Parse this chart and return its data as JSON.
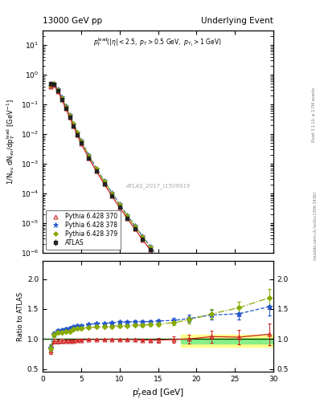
{
  "title_left": "13000 GeV pp",
  "title_right": "Underlying Event",
  "watermark": "ATLAS_2017_I1509919",
  "xlim": [
    0,
    30
  ],
  "ylim_main": [
    1e-06,
    30
  ],
  "ylim_ratio": [
    0.45,
    2.3
  ],
  "atlas_x": [
    1.0,
    1.5,
    2.0,
    2.5,
    3.0,
    3.5,
    4.0,
    4.5,
    5.0,
    6.0,
    7.0,
    8.0,
    9.0,
    10.0,
    11.0,
    12.0,
    13.0,
    14.0,
    15.0,
    17.0,
    19.0,
    22.0,
    25.5,
    29.5
  ],
  "atlas_y": [
    0.5,
    0.46,
    0.28,
    0.148,
    0.075,
    0.038,
    0.019,
    0.0095,
    0.0049,
    0.00155,
    0.00056,
    0.000208,
    8.25e-05,
    3.4e-05,
    1.44e-05,
    6.3e-06,
    2.8e-06,
    1.26e-06,
    5.6e-07,
    1.72e-07,
    5.6e-08,
    1.3e-08,
    3.1e-09,
    6.5e-10
  ],
  "atlas_yerr_lo": [
    0.02,
    0.02,
    0.014,
    0.008,
    0.004,
    0.002,
    0.001,
    0.0005,
    0.00025,
    8e-05,
    3e-05,
    1.1e-05,
    4.5e-06,
    1.9e-06,
    8e-07,
    3.5e-07,
    1.6e-07,
    7e-08,
    3.2e-08,
    1e-08,
    3.5e-09,
    9e-10,
    2.5e-10,
    6e-11
  ],
  "atlas_yerr_hi": [
    0.02,
    0.02,
    0.014,
    0.008,
    0.004,
    0.002,
    0.001,
    0.0005,
    0.00025,
    8e-05,
    3e-05,
    1.1e-05,
    4.5e-06,
    1.9e-06,
    8e-07,
    3.5e-07,
    1.6e-07,
    7e-08,
    3.2e-08,
    1e-08,
    3.5e-09,
    9e-10,
    2.5e-10,
    6e-11
  ],
  "p370_x": [
    1.0,
    1.5,
    2.0,
    2.5,
    3.0,
    3.5,
    4.0,
    4.5,
    5.0,
    6.0,
    7.0,
    8.0,
    9.0,
    10.0,
    11.0,
    12.0,
    13.0,
    14.0,
    15.0,
    17.0,
    19.0,
    22.0,
    25.5,
    29.5
  ],
  "p370_y": [
    0.4,
    0.44,
    0.27,
    0.144,
    0.073,
    0.037,
    0.0185,
    0.00935,
    0.0048,
    0.00153,
    0.000555,
    0.000206,
    8.2e-05,
    3.37e-05,
    1.43e-05,
    6.25e-06,
    2.75e-06,
    1.24e-06,
    5.5e-07,
    1.7e-07,
    5.6e-08,
    1.35e-08,
    3.2e-09,
    7e-10
  ],
  "p378_x": [
    1.0,
    1.5,
    2.0,
    2.5,
    3.0,
    3.5,
    4.0,
    4.5,
    5.0,
    6.0,
    7.0,
    8.0,
    9.0,
    10.0,
    11.0,
    12.0,
    13.0,
    14.0,
    15.0,
    17.0,
    19.0,
    22.0,
    25.5,
    29.5
  ],
  "p378_y": [
    0.43,
    0.5,
    0.32,
    0.17,
    0.088,
    0.045,
    0.0228,
    0.0116,
    0.006,
    0.00192,
    0.000704,
    0.000263,
    0.000105,
    4.34e-05,
    1.84e-05,
    8.1e-06,
    3.6e-06,
    1.63e-06,
    7.3e-07,
    2.26e-07,
    7.5e-08,
    1.82e-08,
    4.4e-09,
    1e-09
  ],
  "p379_x": [
    1.0,
    1.5,
    2.0,
    2.5,
    3.0,
    3.5,
    4.0,
    4.5,
    5.0,
    6.0,
    7.0,
    8.0,
    9.0,
    10.0,
    11.0,
    12.0,
    13.0,
    14.0,
    15.0,
    17.0,
    19.0,
    22.0,
    25.5,
    29.5
  ],
  "p379_y": [
    0.42,
    0.49,
    0.31,
    0.165,
    0.085,
    0.043,
    0.022,
    0.0112,
    0.00578,
    0.00184,
    0.000673,
    0.000252,
    0.0001,
    4.14e-05,
    1.76e-05,
    7.76e-06,
    3.45e-06,
    1.56e-06,
    7e-07,
    2.18e-07,
    7.4e-08,
    1.85e-08,
    4.7e-09,
    1.1e-09
  ],
  "color_atlas": "#222222",
  "color_p370": "#cc2222",
  "color_p378": "#2255cc",
  "color_p379": "#88aa00",
  "ratio_band_xstart": 18.0,
  "ratio_green_lo": 0.93,
  "ratio_green_hi": 1.01,
  "ratio_yellow_lo": 0.875,
  "ratio_yellow_hi": 1.07,
  "ratio_370": [
    0.8,
    0.96,
    0.96,
    0.97,
    0.97,
    0.97,
    0.97,
    0.98,
    0.98,
    0.99,
    0.99,
    0.99,
    0.995,
    0.99,
    0.99,
    0.99,
    0.98,
    0.98,
    0.98,
    0.99,
    1.0,
    1.04,
    1.03,
    1.08
  ],
  "ratio_378": [
    0.86,
    1.09,
    1.14,
    1.15,
    1.17,
    1.18,
    1.2,
    1.22,
    1.22,
    1.24,
    1.26,
    1.26,
    1.27,
    1.28,
    1.28,
    1.29,
    1.29,
    1.29,
    1.3,
    1.31,
    1.34,
    1.4,
    1.42,
    1.54
  ],
  "ratio_379": [
    0.84,
    1.07,
    1.11,
    1.11,
    1.13,
    1.13,
    1.16,
    1.18,
    1.18,
    1.19,
    1.2,
    1.21,
    1.21,
    1.22,
    1.22,
    1.23,
    1.23,
    1.24,
    1.25,
    1.27,
    1.32,
    1.42,
    1.52,
    1.69
  ],
  "ratio_370_yerr": [
    0.05,
    0.04,
    0.03,
    0.03,
    0.02,
    0.02,
    0.02,
    0.02,
    0.02,
    0.015,
    0.015,
    0.015,
    0.015,
    0.015,
    0.015,
    0.02,
    0.02,
    0.03,
    0.04,
    0.05,
    0.07,
    0.1,
    0.12,
    0.18
  ],
  "ratio_378_yerr": [
    0.05,
    0.04,
    0.03,
    0.02,
    0.02,
    0.02,
    0.02,
    0.02,
    0.02,
    0.015,
    0.015,
    0.015,
    0.015,
    0.015,
    0.015,
    0.015,
    0.02,
    0.02,
    0.03,
    0.04,
    0.06,
    0.08,
    0.1,
    0.15
  ],
  "ratio_379_yerr": [
    0.05,
    0.04,
    0.03,
    0.02,
    0.02,
    0.02,
    0.02,
    0.02,
    0.02,
    0.015,
    0.015,
    0.015,
    0.015,
    0.015,
    0.015,
    0.015,
    0.02,
    0.02,
    0.03,
    0.04,
    0.06,
    0.08,
    0.1,
    0.15
  ]
}
